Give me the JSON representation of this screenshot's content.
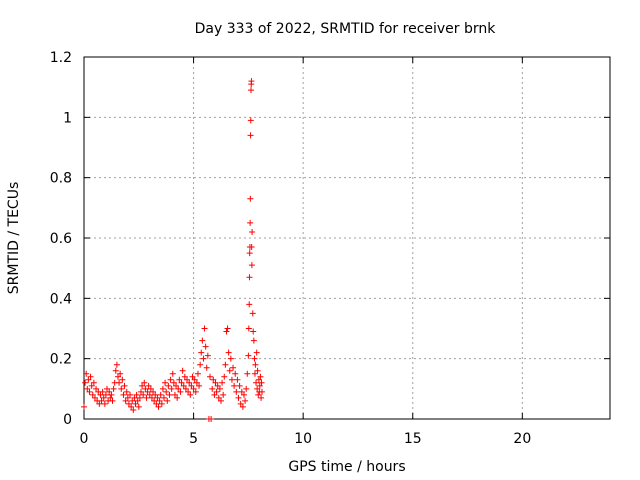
{
  "chart_data": {
    "type": "scatter",
    "title": "Day 333 of 2022, SRMTID for receiver brnk",
    "xlabel": "GPS time / hours",
    "ylabel": "SRMTID / TECUs",
    "xlim": [
      0,
      24
    ],
    "ylim": [
      0,
      1.2
    ],
    "x_ticks": [
      0,
      5,
      10,
      15,
      20
    ],
    "x_tick_labels": [
      "0",
      "5",
      "10",
      "15",
      "20"
    ],
    "y_ticks": [
      0,
      0.2,
      0.4,
      0.6,
      0.8,
      1.0,
      1.2
    ],
    "y_tick_labels": [
      "0",
      "0.2",
      "0.4",
      "0.6",
      "0.8",
      "1",
      "1.2"
    ],
    "grid": true,
    "marker": "+",
    "series": [
      {
        "name": "SRMTID",
        "color": "#ff0000",
        "points": [
          [
            0.0,
            0.04
          ],
          [
            0.05,
            0.12
          ],
          [
            0.1,
            0.15
          ],
          [
            0.15,
            0.1
          ],
          [
            0.2,
            0.13
          ],
          [
            0.25,
            0.09
          ],
          [
            0.3,
            0.14
          ],
          [
            0.35,
            0.11
          ],
          [
            0.4,
            0.08
          ],
          [
            0.45,
            0.12
          ],
          [
            0.5,
            0.07
          ],
          [
            0.55,
            0.1
          ],
          [
            0.6,
            0.06
          ],
          [
            0.65,
            0.09
          ],
          [
            0.7,
            0.05
          ],
          [
            0.75,
            0.08
          ],
          [
            0.8,
            0.06
          ],
          [
            0.85,
            0.09
          ],
          [
            0.9,
            0.07
          ],
          [
            0.95,
            0.05
          ],
          [
            1.0,
            0.08
          ],
          [
            1.05,
            0.1
          ],
          [
            1.1,
            0.06
          ],
          [
            1.15,
            0.09
          ],
          [
            1.2,
            0.07
          ],
          [
            1.25,
            0.08
          ],
          [
            1.3,
            0.06
          ],
          [
            1.35,
            0.1
          ],
          [
            1.4,
            0.12
          ],
          [
            1.45,
            0.16
          ],
          [
            1.5,
            0.18
          ],
          [
            1.55,
            0.14
          ],
          [
            1.6,
            0.12
          ],
          [
            1.65,
            0.15
          ],
          [
            1.7,
            0.1
          ],
          [
            1.75,
            0.13
          ],
          [
            1.8,
            0.08
          ],
          [
            1.85,
            0.11
          ],
          [
            1.9,
            0.06
          ],
          [
            1.95,
            0.09
          ],
          [
            2.0,
            0.07
          ],
          [
            2.05,
            0.05
          ],
          [
            2.1,
            0.08
          ],
          [
            2.15,
            0.04
          ],
          [
            2.2,
            0.06
          ],
          [
            2.25,
            0.03
          ],
          [
            2.3,
            0.07
          ],
          [
            2.35,
            0.05
          ],
          [
            2.4,
            0.08
          ],
          [
            2.45,
            0.06
          ],
          [
            2.5,
            0.04
          ],
          [
            2.55,
            0.07
          ],
          [
            2.6,
            0.09
          ],
          [
            2.65,
            0.11
          ],
          [
            2.7,
            0.08
          ],
          [
            2.75,
            0.12
          ],
          [
            2.8,
            0.1
          ],
          [
            2.85,
            0.07
          ],
          [
            2.9,
            0.09
          ],
          [
            2.95,
            0.11
          ],
          [
            3.0,
            0.08
          ],
          [
            3.05,
            0.1
          ],
          [
            3.1,
            0.07
          ],
          [
            3.15,
            0.09
          ],
          [
            3.2,
            0.06
          ],
          [
            3.25,
            0.08
          ],
          [
            3.3,
            0.05
          ],
          [
            3.35,
            0.07
          ],
          [
            3.4,
            0.04
          ],
          [
            3.45,
            0.06
          ],
          [
            3.5,
            0.08
          ],
          [
            3.55,
            0.05
          ],
          [
            3.6,
            0.1
          ],
          [
            3.65,
            0.07
          ],
          [
            3.7,
            0.12
          ],
          [
            3.75,
            0.09
          ],
          [
            3.8,
            0.06
          ],
          [
            3.85,
            0.11
          ],
          [
            3.9,
            0.08
          ],
          [
            3.95,
            0.13
          ],
          [
            4.0,
            0.1
          ],
          [
            4.05,
            0.15
          ],
          [
            4.1,
            0.12
          ],
          [
            4.15,
            0.08
          ],
          [
            4.2,
            0.11
          ],
          [
            4.25,
            0.07
          ],
          [
            4.3,
            0.1
          ],
          [
            4.35,
            0.13
          ],
          [
            4.4,
            0.09
          ],
          [
            4.45,
            0.12
          ],
          [
            4.5,
            0.16
          ],
          [
            4.55,
            0.11
          ],
          [
            4.6,
            0.14
          ],
          [
            4.65,
            0.1
          ],
          [
            4.7,
            0.13
          ],
          [
            4.75,
            0.09
          ],
          [
            4.8,
            0.12
          ],
          [
            4.85,
            0.08
          ],
          [
            4.9,
            0.11
          ],
          [
            4.95,
            0.14
          ],
          [
            5.0,
            0.1
          ],
          [
            5.05,
            0.13
          ],
          [
            5.1,
            0.09
          ],
          [
            5.15,
            0.12
          ],
          [
            5.2,
            0.15
          ],
          [
            5.25,
            0.11
          ],
          [
            5.3,
            0.18
          ],
          [
            5.35,
            0.22
          ],
          [
            5.4,
            0.26
          ],
          [
            5.45,
            0.2
          ],
          [
            5.5,
            0.3
          ],
          [
            5.55,
            0.24
          ],
          [
            5.6,
            0.17
          ],
          [
            5.65,
            0.21
          ],
          [
            5.7,
            0.0
          ],
          [
            5.75,
            0.14
          ],
          [
            5.8,
            0.0
          ],
          [
            5.85,
            0.1
          ],
          [
            5.9,
            0.13
          ],
          [
            5.95,
            0.08
          ],
          [
            6.0,
            0.12
          ],
          [
            6.05,
            0.09
          ],
          [
            6.1,
            0.11
          ],
          [
            6.15,
            0.07
          ],
          [
            6.2,
            0.1
          ],
          [
            6.25,
            0.06
          ],
          [
            6.3,
            0.12
          ],
          [
            6.35,
            0.08
          ],
          [
            6.4,
            0.14
          ],
          [
            6.45,
            0.18
          ],
          [
            6.5,
            0.29
          ],
          [
            6.55,
            0.3
          ],
          [
            6.6,
            0.22
          ],
          [
            6.65,
            0.16
          ],
          [
            6.7,
            0.2
          ],
          [
            6.75,
            0.13
          ],
          [
            6.8,
            0.17
          ],
          [
            6.85,
            0.11
          ],
          [
            6.9,
            0.15
          ],
          [
            6.95,
            0.09
          ],
          [
            7.0,
            0.13
          ],
          [
            7.05,
            0.07
          ],
          [
            7.1,
            0.11
          ],
          [
            7.15,
            0.05
          ],
          [
            7.2,
            0.09
          ],
          [
            7.25,
            0.04
          ],
          [
            7.3,
            0.08
          ],
          [
            7.35,
            0.06
          ],
          [
            7.4,
            0.1
          ],
          [
            7.45,
            0.15
          ],
          [
            7.5,
            0.21
          ],
          [
            7.52,
            0.3
          ],
          [
            7.54,
            0.38
          ],
          [
            7.55,
            0.47
          ],
          [
            7.56,
            0.55
          ],
          [
            7.57,
            0.57
          ],
          [
            7.58,
            0.65
          ],
          [
            7.59,
            0.73
          ],
          [
            7.6,
            0.94
          ],
          [
            7.61,
            0.99
          ],
          [
            7.62,
            1.09
          ],
          [
            7.63,
            1.11
          ],
          [
            7.64,
            1.12
          ],
          [
            7.65,
            0.57
          ],
          [
            7.66,
            0.51
          ],
          [
            7.67,
            0.62
          ],
          [
            7.7,
            0.35
          ],
          [
            7.72,
            0.29
          ],
          [
            7.75,
            0.26
          ],
          [
            7.78,
            0.2
          ],
          [
            7.8,
            0.15
          ],
          [
            7.82,
            0.18
          ],
          [
            7.85,
            0.12
          ],
          [
            7.88,
            0.22
          ],
          [
            7.9,
            0.1
          ],
          [
            7.92,
            0.16
          ],
          [
            7.95,
            0.08
          ],
          [
            7.98,
            0.13
          ],
          [
            8.0,
            0.09
          ],
          [
            8.02,
            0.11
          ],
          [
            8.05,
            0.14
          ],
          [
            8.08,
            0.07
          ],
          [
            8.1,
            0.12
          ],
          [
            8.12,
            0.09
          ]
        ]
      }
    ]
  }
}
